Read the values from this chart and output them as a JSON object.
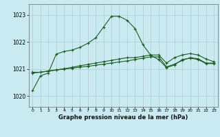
{
  "title": "Graphe pression niveau de la mer (hPa)",
  "background_color": "#c8eaf0",
  "grid_color": "#b0c8d0",
  "line_color": "#1a5c1a",
  "xlim": [
    -0.5,
    23.5
  ],
  "ylim": [
    1019.6,
    1023.4
  ],
  "yticks": [
    1020,
    1021,
    1022,
    1023
  ],
  "xticks": [
    0,
    1,
    2,
    3,
    4,
    5,
    6,
    7,
    8,
    9,
    10,
    11,
    12,
    13,
    14,
    15,
    16,
    17,
    18,
    19,
    20,
    21,
    22,
    23
  ],
  "series1": {
    "x": [
      0,
      1,
      2,
      3,
      4,
      5,
      6,
      7,
      8,
      9,
      10,
      11,
      12,
      13,
      14,
      15,
      16,
      17,
      18,
      19,
      20,
      21,
      22,
      23
    ],
    "y": [
      1020.2,
      1020.75,
      1020.85,
      1021.55,
      1021.65,
      1021.7,
      1021.8,
      1021.95,
      1022.15,
      1022.55,
      1022.95,
      1022.95,
      1022.8,
      1022.5,
      1021.9,
      1021.5,
      1021.35,
      1021.05,
      1021.15,
      1021.35,
      1021.4,
      1021.35,
      1021.2,
      1021.2
    ]
  },
  "series2": {
    "x": [
      0,
      1,
      2,
      3,
      4,
      5,
      6,
      7,
      8,
      9,
      10,
      11,
      12,
      13,
      14,
      15,
      16,
      17,
      18,
      19,
      20,
      21,
      22,
      23
    ],
    "y": [
      1020.85,
      1020.88,
      1020.92,
      1020.96,
      1021.0,
      1021.03,
      1021.07,
      1021.1,
      1021.14,
      1021.18,
      1021.22,
      1021.26,
      1021.3,
      1021.35,
      1021.4,
      1021.45,
      1021.45,
      1021.08,
      1021.18,
      1021.32,
      1021.42,
      1021.38,
      1021.22,
      1021.22
    ]
  },
  "series3": {
    "x": [
      0,
      1,
      2,
      3,
      4,
      5,
      6,
      7,
      8,
      9,
      10,
      11,
      12,
      13,
      14,
      15,
      16,
      17,
      18,
      19,
      20,
      21,
      22,
      23
    ],
    "y": [
      1020.88,
      1020.88,
      1020.93,
      1020.97,
      1021.01,
      1021.06,
      1021.12,
      1021.17,
      1021.22,
      1021.27,
      1021.32,
      1021.37,
      1021.42,
      1021.42,
      1021.47,
      1021.52,
      1021.52,
      1021.22,
      1021.42,
      1021.52,
      1021.57,
      1021.52,
      1021.37,
      1021.27
    ]
  }
}
